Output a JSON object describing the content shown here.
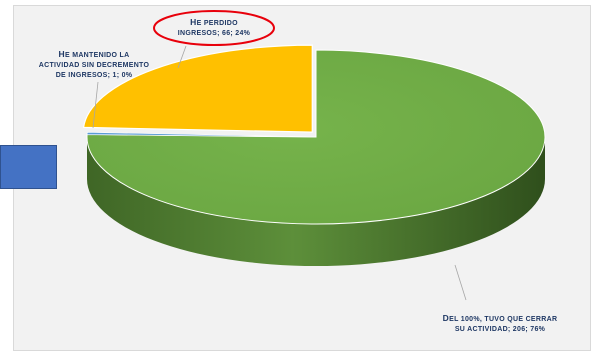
{
  "chart_data": {
    "type": "pie",
    "style": "3d",
    "slices": [
      {
        "label_line1": "Del 100%, tuvo que cerrar",
        "label_line2": "su actividad",
        "value": 206,
        "percent": "76%",
        "color": "#70ad47"
      },
      {
        "label_line1": "He perdido",
        "label_line2": "ingresos",
        "value": 66,
        "percent": "24%",
        "color": "#ffc000"
      },
      {
        "label_line1": "He mantenido la",
        "label_line2": "actividad sin decremento",
        "label_line3": "de ingresos",
        "value": 1,
        "percent": "0%",
        "color": "#5b9bd5"
      }
    ],
    "highlighted_slice": "He perdido ingresos",
    "legend": "none"
  },
  "labels": {
    "green_l1a": "D",
    "green_l1b": "EL 100%, TUVO QUE CERRAR",
    "green_l2": "SU ACTIVIDAD; 206; 76%",
    "yellow_l1a": "H",
    "yellow_l1b": "E PERDIDO",
    "yellow_l2": "INGRESOS; 66; 24%",
    "blue_l1a": "H",
    "blue_l1b": "E MANTENIDO LA",
    "blue_l2": "ACTIVIDAD SIN DECREMENTO",
    "blue_l3": "DE INGRESOS; 1; 0%"
  },
  "colors": {
    "green_top": "#70ad47",
    "green_side": "#4e7a30",
    "yellow_top": "#ffc000",
    "yellow_side": "#c89600",
    "highlight_ring": "#e8000b",
    "label_text": "#1f3864"
  }
}
